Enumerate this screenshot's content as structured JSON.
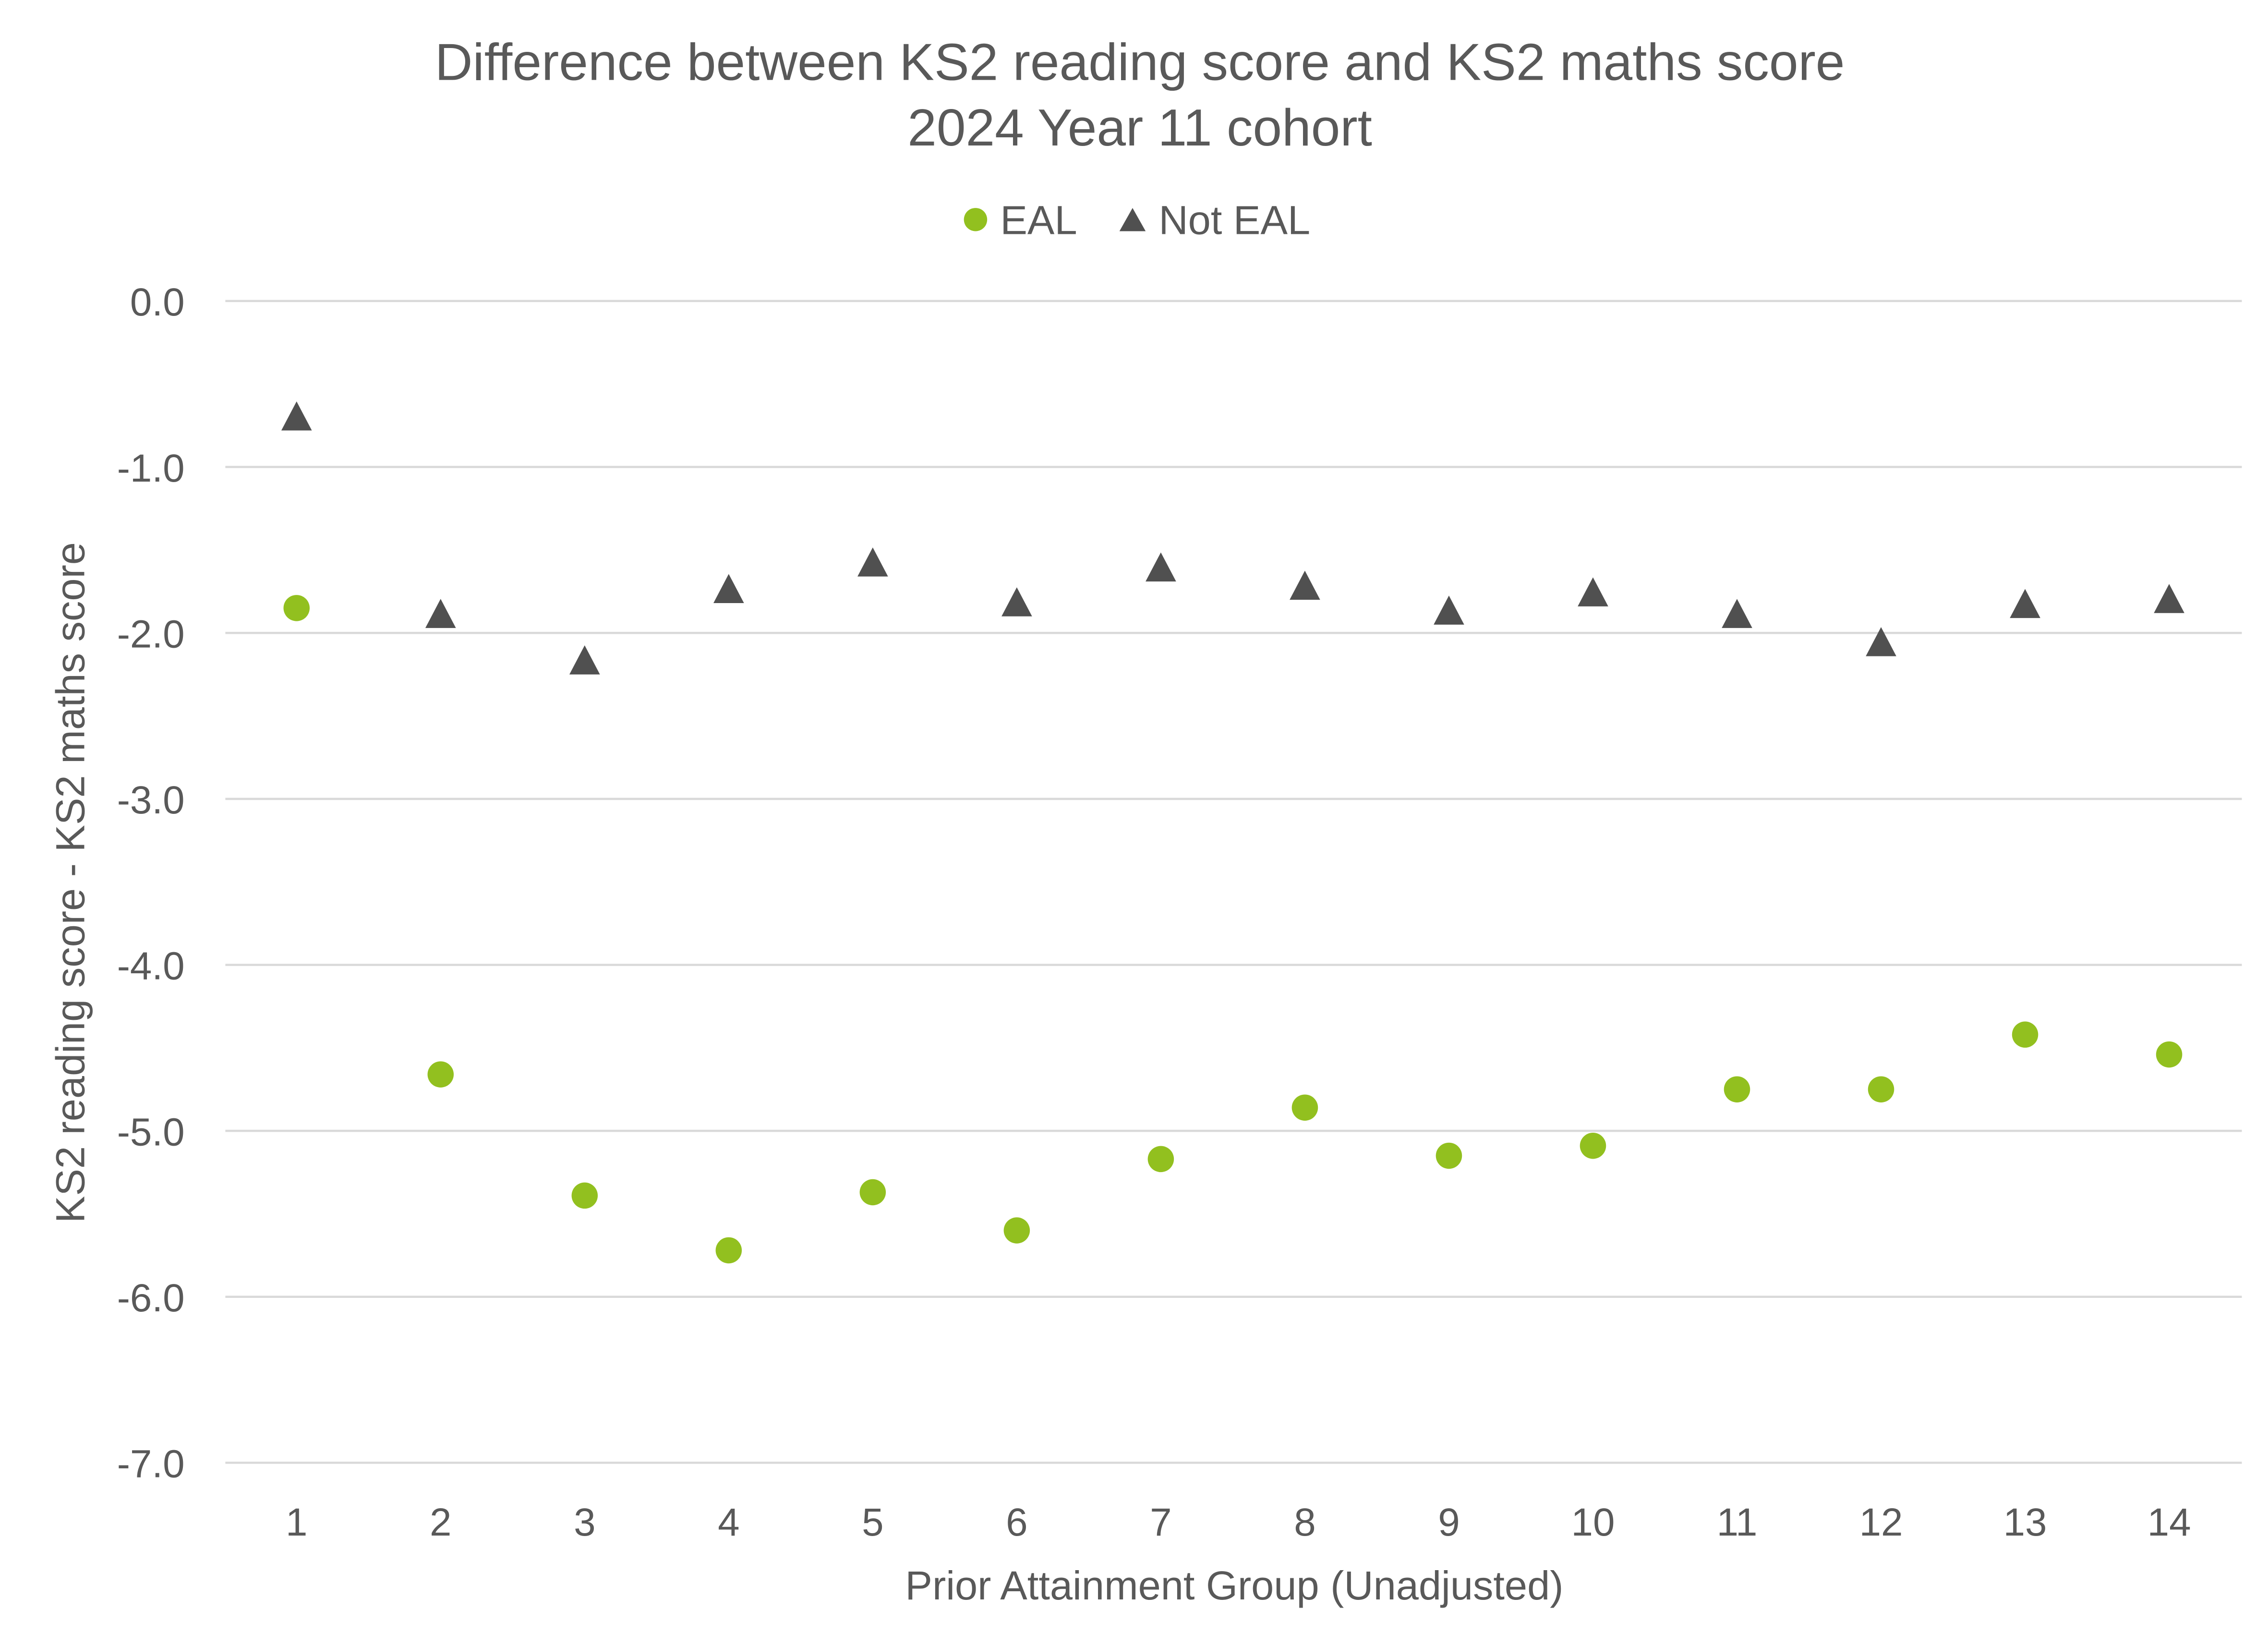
{
  "chart_data": {
    "type": "scatter",
    "title": "Difference between KS2 reading score and KS2 maths score",
    "subtitle": "2024 Year 11 cohort",
    "xlabel": "Prior Attainment Group (Unadjusted)",
    "ylabel": "KS2 reading score - KS2 maths score",
    "x": [
      1,
      2,
      3,
      4,
      5,
      6,
      7,
      8,
      9,
      10,
      11,
      12,
      13,
      14
    ],
    "x_tick_labels": [
      "1",
      "2",
      "3",
      "4",
      "5",
      "6",
      "7",
      "8",
      "9",
      "10",
      "11",
      "12",
      "13",
      "14"
    ],
    "ylim": [
      -7.0,
      0.0
    ],
    "y_tick_labels": [
      "0.0",
      "-1.0",
      "-2.0",
      "-3.0",
      "-4.0",
      "-5.0",
      "-6.0",
      "-7.0"
    ],
    "y_ticks": [
      0,
      -1,
      -2,
      -3,
      -4,
      -5,
      -6,
      -7
    ],
    "grid": true,
    "legend_position": "top-center",
    "series": [
      {
        "name": "EAL",
        "marker": "circle",
        "color": "#92c01f",
        "values": [
          -1.85,
          -4.66,
          -5.39,
          -5.72,
          -5.37,
          -5.6,
          -5.17,
          -4.86,
          -5.15,
          -5.09,
          -4.75,
          -4.75,
          -4.42,
          -4.54
        ]
      },
      {
        "name": "Not EAL",
        "marker": "triangle",
        "color": "#505050",
        "values": [
          -0.71,
          -1.9,
          -2.18,
          -1.75,
          -1.59,
          -1.83,
          -1.62,
          -1.73,
          -1.88,
          -1.77,
          -1.9,
          -2.07,
          -1.84,
          -1.81
        ]
      }
    ]
  }
}
